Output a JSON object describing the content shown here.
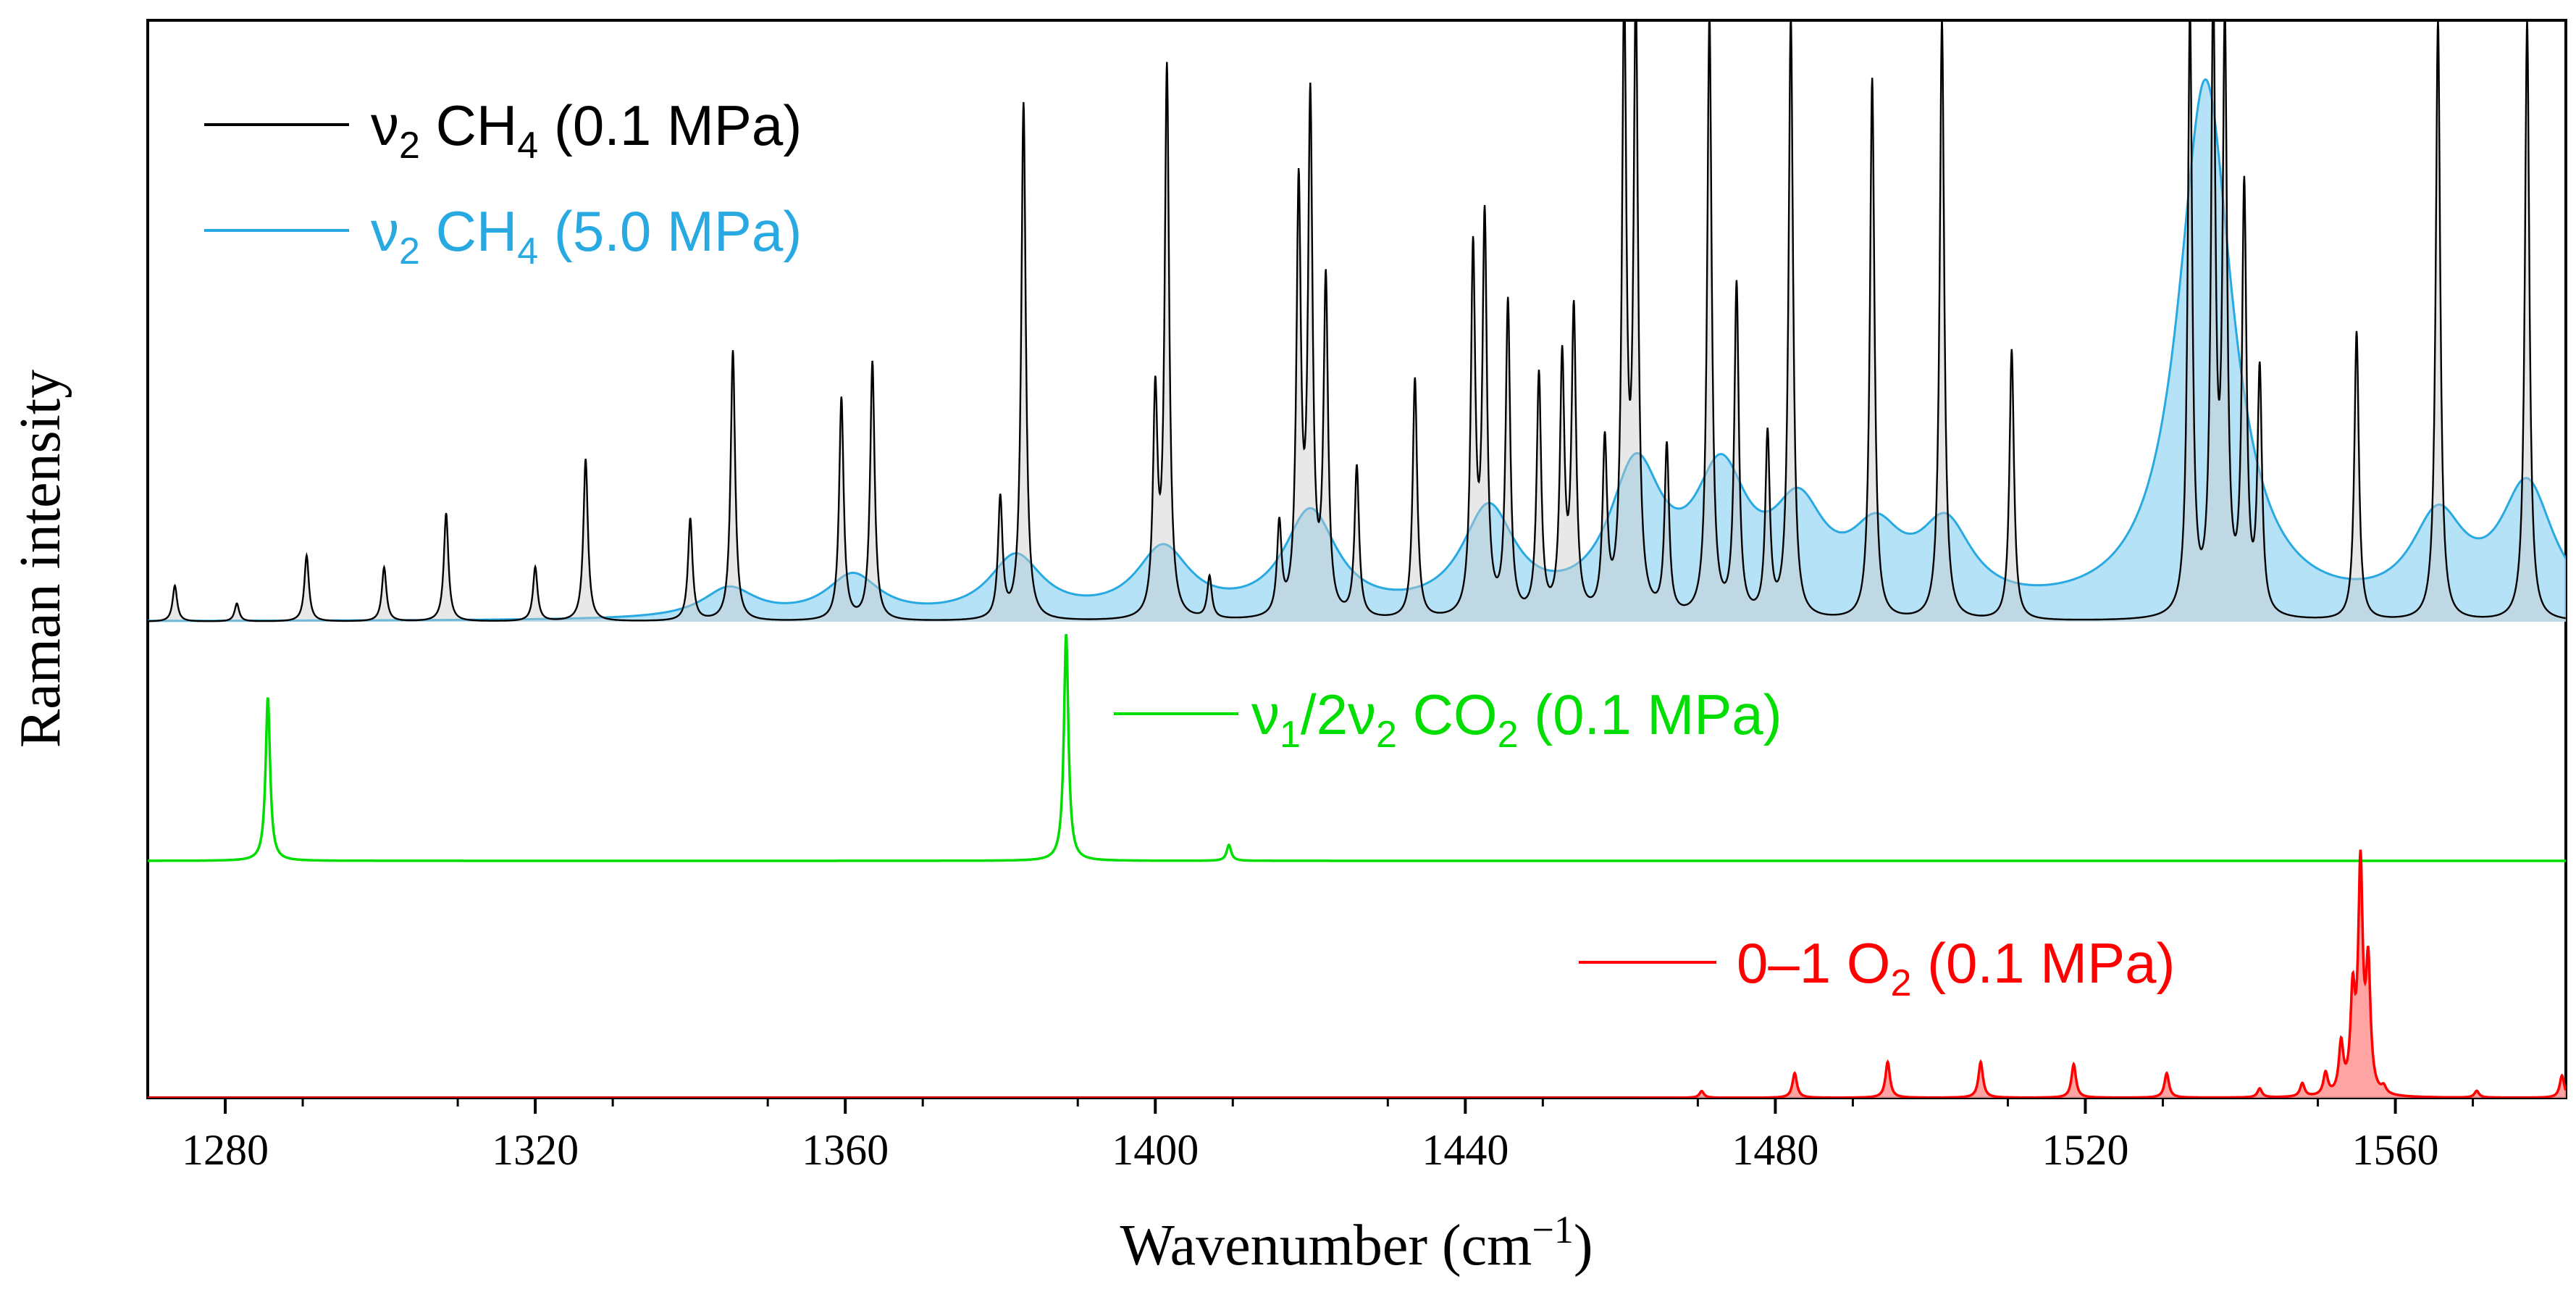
{
  "chart_data": {
    "type": "line",
    "title": "",
    "xlabel": "Wavenumber (cm",
    "xlabel_sup": "−1",
    "xlabel_close": ")",
    "ylabel": "Raman intensity",
    "xlim": [
      1270,
      1582
    ],
    "xticks": [
      1280,
      1320,
      1360,
      1400,
      1440,
      1480,
      1520,
      1560
    ],
    "grid": false,
    "legend_entries": [
      {
        "prefix": "ν",
        "prefix_sub": "2",
        "species": " CH",
        "species_sub": "4",
        "suffix": " (0.1 MPa)",
        "color": "#000000"
      },
      {
        "prefix": "ν",
        "prefix_sub": "2",
        "species": " CH",
        "species_sub": "4",
        "suffix": " (5.0 MPa)",
        "color": "#29a9e1"
      },
      {
        "prefix": "ν",
        "prefix_sub": "1",
        "mid": "/2ν",
        "mid_sub": "2",
        "species": " CO",
        "species_sub": "2",
        "suffix": " (0.1 MPa)",
        "color": "#00dd00"
      },
      {
        "prefix": "0–1 O",
        "prefix_sub": "2",
        "suffix": "  (0.1 MPa)",
        "color": "#ff0000"
      }
    ],
    "series": [
      {
        "name": "ν2 CH4 (0.1 MPa)",
        "color": "#000000",
        "panel": "top",
        "style": "sticks",
        "peaks": [
          [
            1273.5,
            0.06
          ],
          [
            1281.5,
            0.03
          ],
          [
            1290.5,
            0.11
          ],
          [
            1300.5,
            0.09
          ],
          [
            1308.5,
            0.18
          ],
          [
            1320.0,
            0.09
          ],
          [
            1326.5,
            0.27
          ],
          [
            1340.0,
            0.17
          ],
          [
            1345.5,
            0.45
          ],
          [
            1359.5,
            0.37
          ],
          [
            1363.5,
            0.43
          ],
          [
            1380.0,
            0.2
          ],
          [
            1383.0,
            0.86
          ],
          [
            1400.0,
            0.36
          ],
          [
            1401.5,
            0.91
          ],
          [
            1407.0,
            0.07
          ],
          [
            1416.0,
            0.15
          ],
          [
            1418.5,
            0.7
          ],
          [
            1420.0,
            0.84
          ],
          [
            1422.0,
            0.55
          ],
          [
            1426.0,
            0.25
          ],
          [
            1433.5,
            0.4
          ],
          [
            1441.0,
            0.6
          ],
          [
            1442.5,
            0.65
          ],
          [
            1445.5,
            0.52
          ],
          [
            1449.5,
            0.4
          ],
          [
            1452.5,
            0.42
          ],
          [
            1454.0,
            0.5
          ],
          [
            1458.0,
            0.28
          ],
          [
            1460.5,
            1.0
          ],
          [
            1462.0,
            1.0
          ],
          [
            1466.0,
            0.28
          ],
          [
            1471.5,
            1.0
          ],
          [
            1475.0,
            0.55
          ],
          [
            1479.0,
            0.3
          ],
          [
            1482.0,
            1.0
          ],
          [
            1492.5,
            0.9
          ],
          [
            1501.5,
            1.0
          ],
          [
            1510.5,
            0.45
          ],
          [
            1533.5,
            1.0
          ],
          [
            1536.5,
            1.0
          ],
          [
            1538.0,
            0.95
          ],
          [
            1540.5,
            0.7
          ],
          [
            1542.5,
            0.4
          ],
          [
            1555.0,
            0.48
          ],
          [
            1565.5,
            1.0
          ],
          [
            1577.0,
            1.0
          ]
        ]
      },
      {
        "name": "ν2 CH4 (5.0 MPa)",
        "color": "#29a9e1",
        "fill": "#a8ddf5",
        "panel": "top",
        "style": "broadened",
        "peaks": [
          [
            1345,
            0.05
          ],
          [
            1361,
            0.07
          ],
          [
            1382,
            0.1
          ],
          [
            1401,
            0.11
          ],
          [
            1420,
            0.17
          ],
          [
            1443,
            0.17
          ],
          [
            1462,
            0.23
          ],
          [
            1473,
            0.21
          ],
          [
            1483,
            0.15
          ],
          [
            1493,
            0.11
          ],
          [
            1502,
            0.13
          ],
          [
            1535.5,
            0.89
          ],
          [
            1565.5,
            0.15
          ],
          [
            1577,
            0.21
          ]
        ]
      },
      {
        "name": "ν1/2ν2 CO2 (0.1 MPa)",
        "color": "#00dd00",
        "panel": "middle",
        "style": "sticks",
        "peaks": [
          [
            1285.5,
            0.72
          ],
          [
            1388.5,
            1.0
          ],
          [
            1409.5,
            0.07
          ]
        ]
      },
      {
        "name": "0–1 O2 (0.1 MPa)",
        "color": "#ff0000",
        "fill": "#ff9999",
        "panel": "bottom",
        "style": "sticks",
        "peaks": [
          [
            1470.5,
            0.03
          ],
          [
            1482.5,
            0.11
          ],
          [
            1494.5,
            0.16
          ],
          [
            1506.5,
            0.16
          ],
          [
            1518.5,
            0.15
          ],
          [
            1530.5,
            0.11
          ],
          [
            1542.5,
            0.04
          ],
          [
            1548.0,
            0.06
          ],
          [
            1551.0,
            0.1
          ],
          [
            1553.0,
            0.22
          ],
          [
            1554.5,
            0.42
          ],
          [
            1555.5,
            1.0
          ],
          [
            1556.5,
            0.55
          ],
          [
            1558.5,
            0.03
          ],
          [
            1570.5,
            0.03
          ],
          [
            1581.5,
            0.1
          ]
        ]
      }
    ]
  }
}
